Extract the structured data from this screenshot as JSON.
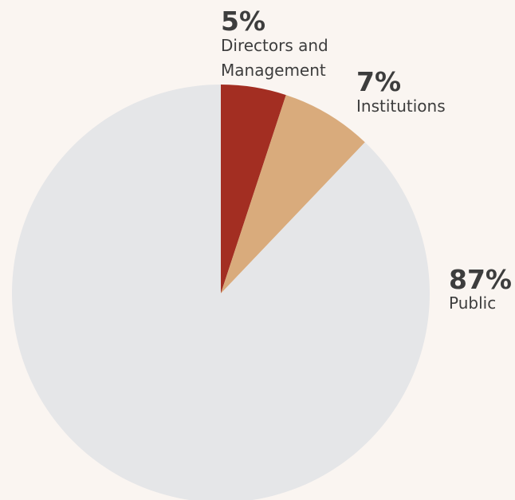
{
  "chart_data": {
    "type": "pie",
    "start_angle_deg": 0,
    "direction": "clockwise",
    "slices": [
      {
        "label": "Directors and Management",
        "label_lines": [
          "Directors and",
          "Management"
        ],
        "value": 5,
        "value_label": "5%",
        "color": "#a32e22"
      },
      {
        "label": "Institutions",
        "label_lines": [
          "Institutions"
        ],
        "value": 7,
        "value_label": "7%",
        "color": "#d9ab7c"
      },
      {
        "label": "Public",
        "label_lines": [
          "Public"
        ],
        "value": 87,
        "value_label": "87%",
        "color": "#e5e6e8"
      }
    ]
  }
}
